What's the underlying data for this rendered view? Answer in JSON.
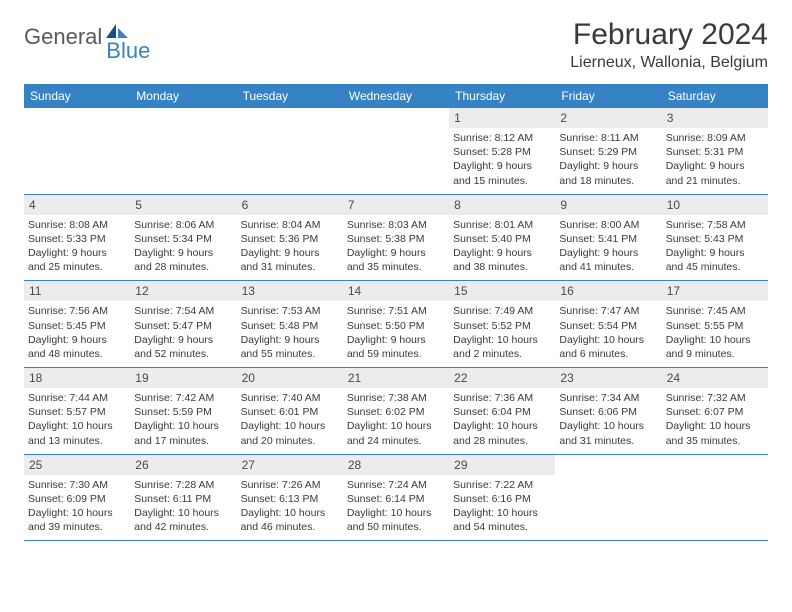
{
  "logo": {
    "general": "General",
    "blue": "Blue"
  },
  "title": "February 2024",
  "location": "Lierneux, Wallonia, Belgium",
  "colors": {
    "header_bg": "#3583c5",
    "daynum_bg": "#ececec",
    "text": "#3a3a3a",
    "logo_gray": "#5a5a5a",
    "logo_blue": "#3583c5"
  },
  "weekdays": [
    "Sunday",
    "Monday",
    "Tuesday",
    "Wednesday",
    "Thursday",
    "Friday",
    "Saturday"
  ],
  "weeks": [
    [
      null,
      null,
      null,
      null,
      {
        "n": "1",
        "sr": "Sunrise: 8:12 AM",
        "ss": "Sunset: 5:28 PM",
        "d1": "Daylight: 9 hours",
        "d2": "and 15 minutes."
      },
      {
        "n": "2",
        "sr": "Sunrise: 8:11 AM",
        "ss": "Sunset: 5:29 PM",
        "d1": "Daylight: 9 hours",
        "d2": "and 18 minutes."
      },
      {
        "n": "3",
        "sr": "Sunrise: 8:09 AM",
        "ss": "Sunset: 5:31 PM",
        "d1": "Daylight: 9 hours",
        "d2": "and 21 minutes."
      }
    ],
    [
      {
        "n": "4",
        "sr": "Sunrise: 8:08 AM",
        "ss": "Sunset: 5:33 PM",
        "d1": "Daylight: 9 hours",
        "d2": "and 25 minutes."
      },
      {
        "n": "5",
        "sr": "Sunrise: 8:06 AM",
        "ss": "Sunset: 5:34 PM",
        "d1": "Daylight: 9 hours",
        "d2": "and 28 minutes."
      },
      {
        "n": "6",
        "sr": "Sunrise: 8:04 AM",
        "ss": "Sunset: 5:36 PM",
        "d1": "Daylight: 9 hours",
        "d2": "and 31 minutes."
      },
      {
        "n": "7",
        "sr": "Sunrise: 8:03 AM",
        "ss": "Sunset: 5:38 PM",
        "d1": "Daylight: 9 hours",
        "d2": "and 35 minutes."
      },
      {
        "n": "8",
        "sr": "Sunrise: 8:01 AM",
        "ss": "Sunset: 5:40 PM",
        "d1": "Daylight: 9 hours",
        "d2": "and 38 minutes."
      },
      {
        "n": "9",
        "sr": "Sunrise: 8:00 AM",
        "ss": "Sunset: 5:41 PM",
        "d1": "Daylight: 9 hours",
        "d2": "and 41 minutes."
      },
      {
        "n": "10",
        "sr": "Sunrise: 7:58 AM",
        "ss": "Sunset: 5:43 PM",
        "d1": "Daylight: 9 hours",
        "d2": "and 45 minutes."
      }
    ],
    [
      {
        "n": "11",
        "sr": "Sunrise: 7:56 AM",
        "ss": "Sunset: 5:45 PM",
        "d1": "Daylight: 9 hours",
        "d2": "and 48 minutes."
      },
      {
        "n": "12",
        "sr": "Sunrise: 7:54 AM",
        "ss": "Sunset: 5:47 PM",
        "d1": "Daylight: 9 hours",
        "d2": "and 52 minutes."
      },
      {
        "n": "13",
        "sr": "Sunrise: 7:53 AM",
        "ss": "Sunset: 5:48 PM",
        "d1": "Daylight: 9 hours",
        "d2": "and 55 minutes."
      },
      {
        "n": "14",
        "sr": "Sunrise: 7:51 AM",
        "ss": "Sunset: 5:50 PM",
        "d1": "Daylight: 9 hours",
        "d2": "and 59 minutes."
      },
      {
        "n": "15",
        "sr": "Sunrise: 7:49 AM",
        "ss": "Sunset: 5:52 PM",
        "d1": "Daylight: 10 hours",
        "d2": "and 2 minutes."
      },
      {
        "n": "16",
        "sr": "Sunrise: 7:47 AM",
        "ss": "Sunset: 5:54 PM",
        "d1": "Daylight: 10 hours",
        "d2": "and 6 minutes."
      },
      {
        "n": "17",
        "sr": "Sunrise: 7:45 AM",
        "ss": "Sunset: 5:55 PM",
        "d1": "Daylight: 10 hours",
        "d2": "and 9 minutes."
      }
    ],
    [
      {
        "n": "18",
        "sr": "Sunrise: 7:44 AM",
        "ss": "Sunset: 5:57 PM",
        "d1": "Daylight: 10 hours",
        "d2": "and 13 minutes."
      },
      {
        "n": "19",
        "sr": "Sunrise: 7:42 AM",
        "ss": "Sunset: 5:59 PM",
        "d1": "Daylight: 10 hours",
        "d2": "and 17 minutes."
      },
      {
        "n": "20",
        "sr": "Sunrise: 7:40 AM",
        "ss": "Sunset: 6:01 PM",
        "d1": "Daylight: 10 hours",
        "d2": "and 20 minutes."
      },
      {
        "n": "21",
        "sr": "Sunrise: 7:38 AM",
        "ss": "Sunset: 6:02 PM",
        "d1": "Daylight: 10 hours",
        "d2": "and 24 minutes."
      },
      {
        "n": "22",
        "sr": "Sunrise: 7:36 AM",
        "ss": "Sunset: 6:04 PM",
        "d1": "Daylight: 10 hours",
        "d2": "and 28 minutes."
      },
      {
        "n": "23",
        "sr": "Sunrise: 7:34 AM",
        "ss": "Sunset: 6:06 PM",
        "d1": "Daylight: 10 hours",
        "d2": "and 31 minutes."
      },
      {
        "n": "24",
        "sr": "Sunrise: 7:32 AM",
        "ss": "Sunset: 6:07 PM",
        "d1": "Daylight: 10 hours",
        "d2": "and 35 minutes."
      }
    ],
    [
      {
        "n": "25",
        "sr": "Sunrise: 7:30 AM",
        "ss": "Sunset: 6:09 PM",
        "d1": "Daylight: 10 hours",
        "d2": "and 39 minutes."
      },
      {
        "n": "26",
        "sr": "Sunrise: 7:28 AM",
        "ss": "Sunset: 6:11 PM",
        "d1": "Daylight: 10 hours",
        "d2": "and 42 minutes."
      },
      {
        "n": "27",
        "sr": "Sunrise: 7:26 AM",
        "ss": "Sunset: 6:13 PM",
        "d1": "Daylight: 10 hours",
        "d2": "and 46 minutes."
      },
      {
        "n": "28",
        "sr": "Sunrise: 7:24 AM",
        "ss": "Sunset: 6:14 PM",
        "d1": "Daylight: 10 hours",
        "d2": "and 50 minutes."
      },
      {
        "n": "29",
        "sr": "Sunrise: 7:22 AM",
        "ss": "Sunset: 6:16 PM",
        "d1": "Daylight: 10 hours",
        "d2": "and 54 minutes."
      },
      null,
      null
    ]
  ]
}
